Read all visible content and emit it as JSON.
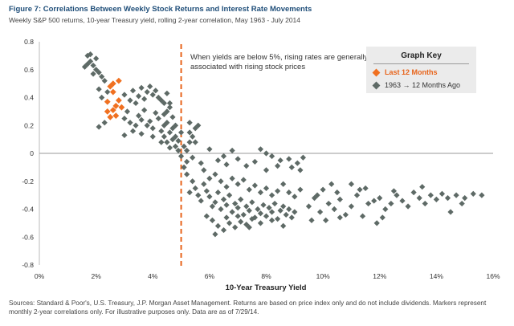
{
  "header": {
    "title": "Figure 7: Correlations Between Weekly Stock Returns and Interest Rate Movements",
    "subtitle": "Weekly S&P 500 returns, 10-year Treasury yield, rolling 2-year correlation, May 1963 - July 2014"
  },
  "annotation": "When yields are below 5%, rising rates are generally associated with rising stock prices",
  "graph_key": {
    "title": "Graph Key",
    "items": [
      "Last 12 Months",
      "1963 → 12 Months Ago"
    ]
  },
  "footnote": "Sources: Standard & Poor's, U.S. Treasury, J.P. Morgan Asset Management. Returns are based on price index only and do not include dividends. Markers represent monthly 2-year correlations only. For illustrative purposes only. Data are as of 7/29/14.",
  "colors": {
    "recent": "#f07020",
    "historical": "#5e6a66",
    "threshold_line": "#e8641b",
    "title": "#1f4e79"
  },
  "chart_data": {
    "type": "scatter",
    "xlabel": "10-Year Treasury Yield",
    "ylabel": "",
    "xlim": [
      0,
      16
    ],
    "ylim": [
      -0.8,
      0.8
    ],
    "x_ticks": [
      "0%",
      "2%",
      "4%",
      "6%",
      "8%",
      "10%",
      "12%",
      "14%",
      "16%"
    ],
    "y_ticks": [
      "0.8",
      "0.6",
      "0.4",
      "0.2",
      "0",
      "-0.2",
      "-0.4",
      "-0.6",
      "-0.8"
    ],
    "grid": false,
    "threshold_x": 5,
    "legend": "top-right",
    "series": [
      {
        "name": "Last 12 Months",
        "color": "#f07020",
        "points": [
          [
            2.5,
            0.48
          ],
          [
            2.6,
            0.44
          ],
          [
            2.4,
            0.37
          ],
          [
            2.7,
            0.34
          ],
          [
            2.8,
            0.38
          ],
          [
            2.6,
            0.31
          ],
          [
            2.5,
            0.26
          ],
          [
            2.7,
            0.27
          ],
          [
            2.9,
            0.33
          ],
          [
            2.6,
            0.5
          ],
          [
            2.8,
            0.52
          ],
          [
            2.4,
            0.3
          ]
        ]
      },
      {
        "name": "1963 → 12 Months Ago",
        "color": "#5e6a66",
        "points": [
          [
            1.6,
            0.62
          ],
          [
            1.7,
            0.7
          ],
          [
            1.8,
            0.66
          ],
          [
            1.9,
            0.63
          ],
          [
            2.0,
            0.6
          ],
          [
            1.7,
            0.64
          ],
          [
            1.8,
            0.71
          ],
          [
            2.1,
            0.58
          ],
          [
            2.2,
            0.55
          ],
          [
            2.0,
            0.68
          ],
          [
            1.9,
            0.57
          ],
          [
            2.3,
            0.52
          ],
          [
            2.1,
            0.46
          ],
          [
            2.2,
            0.4
          ],
          [
            2.4,
            0.44
          ],
          [
            2.1,
            0.19
          ],
          [
            2.3,
            0.22
          ],
          [
            3.0,
            0.42
          ],
          [
            3.2,
            0.38
          ],
          [
            3.1,
            0.3
          ],
          [
            3.3,
            0.45
          ],
          [
            3.4,
            0.36
          ],
          [
            3.5,
            0.41
          ],
          [
            3.6,
            0.47
          ],
          [
            3.7,
            0.39
          ],
          [
            3.8,
            0.44
          ],
          [
            3.9,
            0.48
          ],
          [
            4.0,
            0.42
          ],
          [
            4.1,
            0.45
          ],
          [
            4.2,
            0.4
          ],
          [
            4.3,
            0.38
          ],
          [
            4.4,
            0.36
          ],
          [
            4.5,
            0.43
          ],
          [
            4.6,
            0.33
          ],
          [
            3.0,
            0.25
          ],
          [
            3.2,
            0.22
          ],
          [
            3.4,
            0.2
          ],
          [
            3.5,
            0.27
          ],
          [
            3.6,
            0.24
          ],
          [
            3.8,
            0.2
          ],
          [
            3.9,
            0.23
          ],
          [
            4.0,
            0.18
          ],
          [
            4.2,
            0.25
          ],
          [
            4.3,
            0.16
          ],
          [
            4.4,
            0.2
          ],
          [
            4.1,
            0.29
          ],
          [
            3.7,
            0.31
          ],
          [
            3.3,
            0.16
          ],
          [
            3.0,
            0.13
          ],
          [
            3.6,
            0.14
          ],
          [
            4.0,
            0.12
          ],
          [
            4.5,
            0.22
          ],
          [
            4.6,
            0.15
          ],
          [
            4.7,
            0.1
          ],
          [
            4.8,
            0.05
          ],
          [
            4.5,
            0.08
          ],
          [
            4.7,
            0.18
          ],
          [
            4.4,
            0.12
          ],
          [
            4.6,
            0.04
          ],
          [
            4.8,
            0.12
          ],
          [
            4.9,
            0.02
          ],
          [
            4.3,
            0.08
          ],
          [
            4.5,
            0.3
          ],
          [
            4.7,
            0.26
          ],
          [
            4.8,
            0.2
          ],
          [
            4.6,
            0.36
          ],
          [
            4.4,
            0.28
          ],
          [
            4.9,
            0.09
          ],
          [
            5.1,
            0.05
          ],
          [
            5.2,
            0.02
          ],
          [
            5.0,
            -0.02
          ],
          [
            5.3,
            0.08
          ],
          [
            5.4,
            0.12
          ],
          [
            5.5,
            0.18
          ],
          [
            5.3,
            0.22
          ],
          [
            5.5,
            0.08
          ],
          [
            5.2,
            -0.06
          ],
          [
            5.1,
            -0.1
          ],
          [
            5.0,
            0.15
          ],
          [
            5.6,
            0.2
          ],
          [
            5.4,
            -0.03
          ],
          [
            5.3,
            0.15
          ],
          [
            5.2,
            -0.15
          ],
          [
            5.4,
            -0.2
          ],
          [
            5.5,
            -0.25
          ],
          [
            5.3,
            -0.28
          ],
          [
            5.6,
            -0.3
          ],
          [
            5.8,
            -0.22
          ],
          [
            5.7,
            -0.34
          ],
          [
            5.9,
            -0.27
          ],
          [
            6.0,
            -0.31
          ],
          [
            6.1,
            -0.38
          ],
          [
            6.2,
            -0.35
          ],
          [
            6.3,
            -0.28
          ],
          [
            6.4,
            -0.4
          ],
          [
            6.5,
            -0.33
          ],
          [
            6.6,
            -0.37
          ],
          [
            6.7,
            -0.3
          ],
          [
            6.8,
            -0.42
          ],
          [
            6.9,
            -0.36
          ],
          [
            7.0,
            -0.39
          ],
          [
            7.1,
            -0.33
          ],
          [
            7.2,
            -0.44
          ],
          [
            7.3,
            -0.38
          ],
          [
            7.4,
            -0.41
          ],
          [
            7.5,
            -0.35
          ],
          [
            7.6,
            -0.46
          ],
          [
            7.7,
            -0.4
          ],
          [
            7.8,
            -0.43
          ],
          [
            7.9,
            -0.37
          ],
          [
            8.0,
            -0.45
          ],
          [
            8.1,
            -0.39
          ],
          [
            8.2,
            -0.42
          ],
          [
            8.3,
            -0.36
          ],
          [
            8.4,
            -0.47
          ],
          [
            8.5,
            -0.41
          ],
          [
            8.6,
            -0.38
          ],
          [
            8.7,
            -0.44
          ],
          [
            8.8,
            -0.4
          ],
          [
            8.9,
            -0.46
          ],
          [
            9.0,
            -0.42
          ],
          [
            5.8,
            -0.12
          ],
          [
            6.0,
            -0.18
          ],
          [
            6.2,
            -0.15
          ],
          [
            6.4,
            -0.2
          ],
          [
            6.6,
            -0.24
          ],
          [
            6.8,
            -0.18
          ],
          [
            7.0,
            -0.22
          ],
          [
            7.2,
            -0.19
          ],
          [
            7.4,
            -0.26
          ],
          [
            7.6,
            -0.23
          ],
          [
            7.8,
            -0.28
          ],
          [
            8.0,
            -0.25
          ],
          [
            8.2,
            -0.3
          ],
          [
            8.4,
            -0.27
          ],
          [
            8.6,
            -0.22
          ],
          [
            8.8,
            -0.28
          ],
          [
            9.0,
            -0.31
          ],
          [
            9.2,
            -0.26
          ],
          [
            6.1,
            -0.48
          ],
          [
            6.3,
            -0.52
          ],
          [
            6.5,
            -0.55
          ],
          [
            6.7,
            -0.5
          ],
          [
            6.9,
            -0.53
          ],
          [
            7.1,
            -0.49
          ],
          [
            7.3,
            -0.51
          ],
          [
            7.5,
            -0.47
          ],
          [
            5.9,
            -0.45
          ],
          [
            6.2,
            -0.58
          ],
          [
            6.6,
            -0.46
          ],
          [
            7.0,
            -0.45
          ],
          [
            7.4,
            -0.53
          ],
          [
            7.8,
            -0.5
          ],
          [
            8.2,
            -0.48
          ],
          [
            8.6,
            -0.52
          ],
          [
            7.8,
            0.03
          ],
          [
            8.0,
            0.0
          ],
          [
            8.2,
            -0.02
          ],
          [
            8.5,
            -0.05
          ],
          [
            8.8,
            -0.04
          ],
          [
            9.1,
            -0.07
          ],
          [
            9.3,
            -0.03
          ],
          [
            7.6,
            -0.06
          ],
          [
            8.4,
            -0.09
          ],
          [
            8.9,
            -0.1
          ],
          [
            9.2,
            -0.12
          ],
          [
            8.0,
            -0.12
          ],
          [
            6.3,
            -0.05
          ],
          [
            6.6,
            -0.08
          ],
          [
            7.0,
            -0.04
          ],
          [
            7.3,
            -0.09
          ],
          [
            6.8,
            0.02
          ],
          [
            6.0,
            0.03
          ],
          [
            5.7,
            -0.07
          ],
          [
            6.5,
            -0.02
          ],
          [
            9.5,
            -0.38
          ],
          [
            9.7,
            -0.32
          ],
          [
            9.9,
            -0.42
          ],
          [
            10.2,
            -0.36
          ],
          [
            10.4,
            -0.4
          ],
          [
            10.6,
            -0.33
          ],
          [
            10.8,
            -0.44
          ],
          [
            11.0,
            -0.38
          ],
          [
            11.2,
            -0.3
          ],
          [
            11.4,
            -0.45
          ],
          [
            11.6,
            -0.36
          ],
          [
            11.8,
            -0.34
          ],
          [
            12.0,
            -0.32
          ],
          [
            12.2,
            -0.4
          ],
          [
            12.4,
            -0.36
          ],
          [
            12.6,
            -0.3
          ],
          [
            12.8,
            -0.34
          ],
          [
            13.0,
            -0.38
          ],
          [
            13.2,
            -0.28
          ],
          [
            13.4,
            -0.32
          ],
          [
            13.6,
            -0.36
          ],
          [
            13.8,
            -0.3
          ],
          [
            14.0,
            -0.33
          ],
          [
            14.2,
            -0.29
          ],
          [
            14.4,
            -0.32
          ],
          [
            14.7,
            -0.3
          ],
          [
            15.0,
            -0.32
          ],
          [
            15.3,
            -0.29
          ],
          [
            15.6,
            -0.3
          ],
          [
            14.5,
            -0.42
          ],
          [
            14.9,
            -0.36
          ],
          [
            10.0,
            -0.26
          ],
          [
            10.3,
            -0.22
          ],
          [
            10.5,
            -0.28
          ],
          [
            10.1,
            -0.48
          ],
          [
            10.6,
            -0.46
          ],
          [
            11.0,
            -0.22
          ],
          [
            11.3,
            -0.26
          ],
          [
            12.1,
            -0.46
          ],
          [
            12.5,
            -0.27
          ],
          [
            13.5,
            -0.24
          ],
          [
            11.9,
            -0.5
          ],
          [
            11.5,
            -0.25
          ],
          [
            9.8,
            -0.3
          ],
          [
            9.6,
            -0.48
          ]
        ]
      }
    ]
  }
}
